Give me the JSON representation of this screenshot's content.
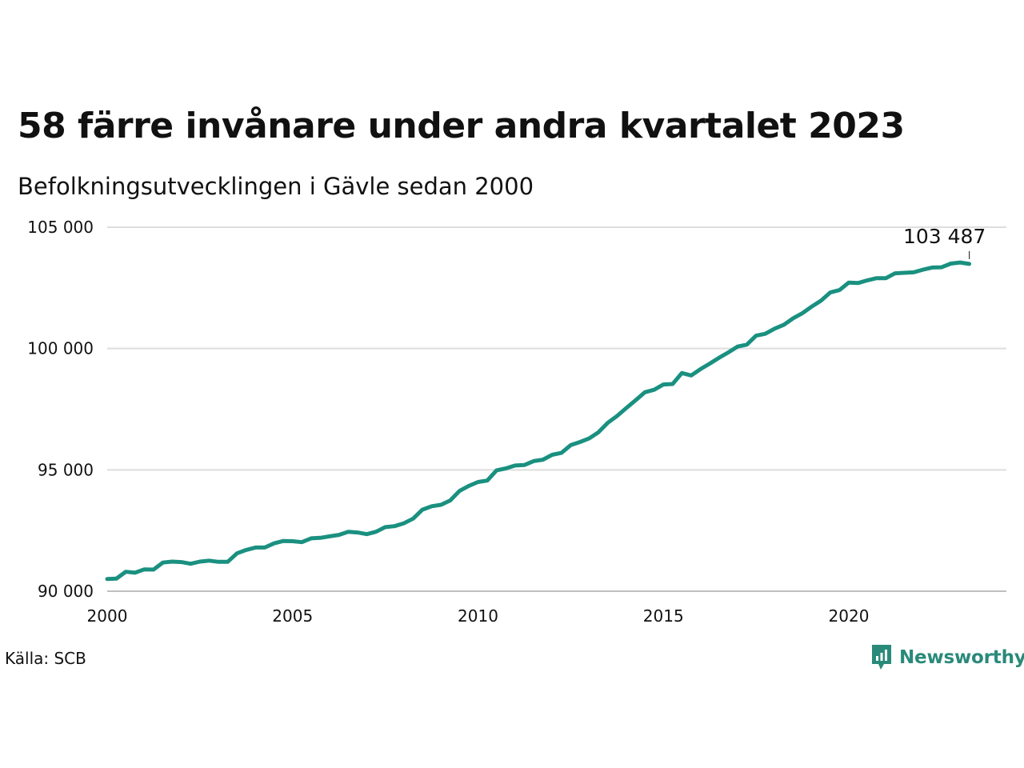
{
  "title": "58 färre invånare under andra kvartalet 2023",
  "subtitle": "Befolkningsutvecklingen i Gävle sedan 2000",
  "source": "Källa: SCB",
  "brand": {
    "name": "Newsworthy",
    "icon": "newsworthy-logo-icon",
    "color": "#2a8a7a"
  },
  "chart_data": {
    "type": "line",
    "title": "58 färre invånare under andra kvartalet 2023",
    "subtitle": "Befolkningsutvecklingen i Gävle sedan 2000",
    "xlabel": "",
    "ylabel": "",
    "xlim": [
      2000,
      2024.25
    ],
    "ylim": [
      90000,
      105000
    ],
    "x_ticks": [
      2000,
      2005,
      2010,
      2015,
      2020
    ],
    "x_tick_labels": [
      "2000",
      "2005",
      "2010",
      "2015",
      "2020"
    ],
    "y_ticks": [
      90000,
      95000,
      100000,
      105000
    ],
    "y_tick_labels": [
      "90 000",
      "95 000",
      "100 000",
      "105 000"
    ],
    "grid": "horizontal",
    "line_color": "#1a9080",
    "end_label": "103 487",
    "series": [
      {
        "x": [
          2000.0,
          2000.25,
          2000.5,
          2000.75,
          2001.0,
          2001.25,
          2001.5,
          2001.75,
          2002.0,
          2002.25,
          2002.5,
          2002.75,
          2003.0,
          2003.25,
          2003.5,
          2003.75,
          2004.0,
          2004.25,
          2004.5,
          2004.75,
          2005.0,
          2005.25,
          2005.5,
          2005.75,
          2006.0,
          2006.25,
          2006.5,
          2006.75,
          2007.0,
          2007.25,
          2007.5,
          2007.75,
          2008.0,
          2008.25,
          2008.5,
          2008.75,
          2009.0,
          2009.25,
          2009.5,
          2009.75,
          2010.0,
          2010.25,
          2010.5,
          2010.75,
          2011.0,
          2011.25,
          2011.5,
          2011.75,
          2012.0,
          2012.25,
          2012.5,
          2012.75,
          2013.0,
          2013.25,
          2013.5,
          2013.75,
          2014.0,
          2014.25,
          2014.5,
          2014.75,
          2015.0,
          2015.25,
          2015.5,
          2015.75,
          2016.0,
          2016.25,
          2016.5,
          2016.75,
          2017.0,
          2017.25,
          2017.5,
          2017.75,
          2018.0,
          2018.25,
          2018.5,
          2018.75,
          2019.0,
          2019.25,
          2019.5,
          2019.75,
          2020.0,
          2020.25,
          2020.5,
          2020.75,
          2021.0,
          2021.25,
          2021.5,
          2021.75,
          2022.0,
          2022.25,
          2022.5,
          2022.75,
          2023.0,
          2023.25
        ],
        "values": [
          90500,
          90520,
          90800,
          90760,
          90900,
          90890,
          91180,
          91220,
          91200,
          91130,
          91220,
          91260,
          91210,
          91210,
          91560,
          91700,
          91800,
          91800,
          91970,
          92070,
          92060,
          92020,
          92180,
          92200,
          92260,
          92320,
          92450,
          92420,
          92350,
          92450,
          92640,
          92680,
          92800,
          92990,
          93360,
          93500,
          93560,
          93740,
          94130,
          94340,
          94500,
          94560,
          94980,
          95060,
          95180,
          95200,
          95360,
          95420,
          95620,
          95700,
          96020,
          96150,
          96300,
          96550,
          96940,
          97220,
          97550,
          97870,
          98200,
          98300,
          98520,
          98540,
          98990,
          98890,
          99150,
          99380,
          99620,
          99840,
          100080,
          100160,
          100530,
          100610,
          100820,
          100980,
          101250,
          101460,
          101730,
          101970,
          102310,
          102410,
          102720,
          102700,
          102810,
          102900,
          102900,
          103100,
          103120,
          103140,
          103250,
          103340,
          103350,
          103500,
          103545,
          103487
        ]
      }
    ]
  }
}
